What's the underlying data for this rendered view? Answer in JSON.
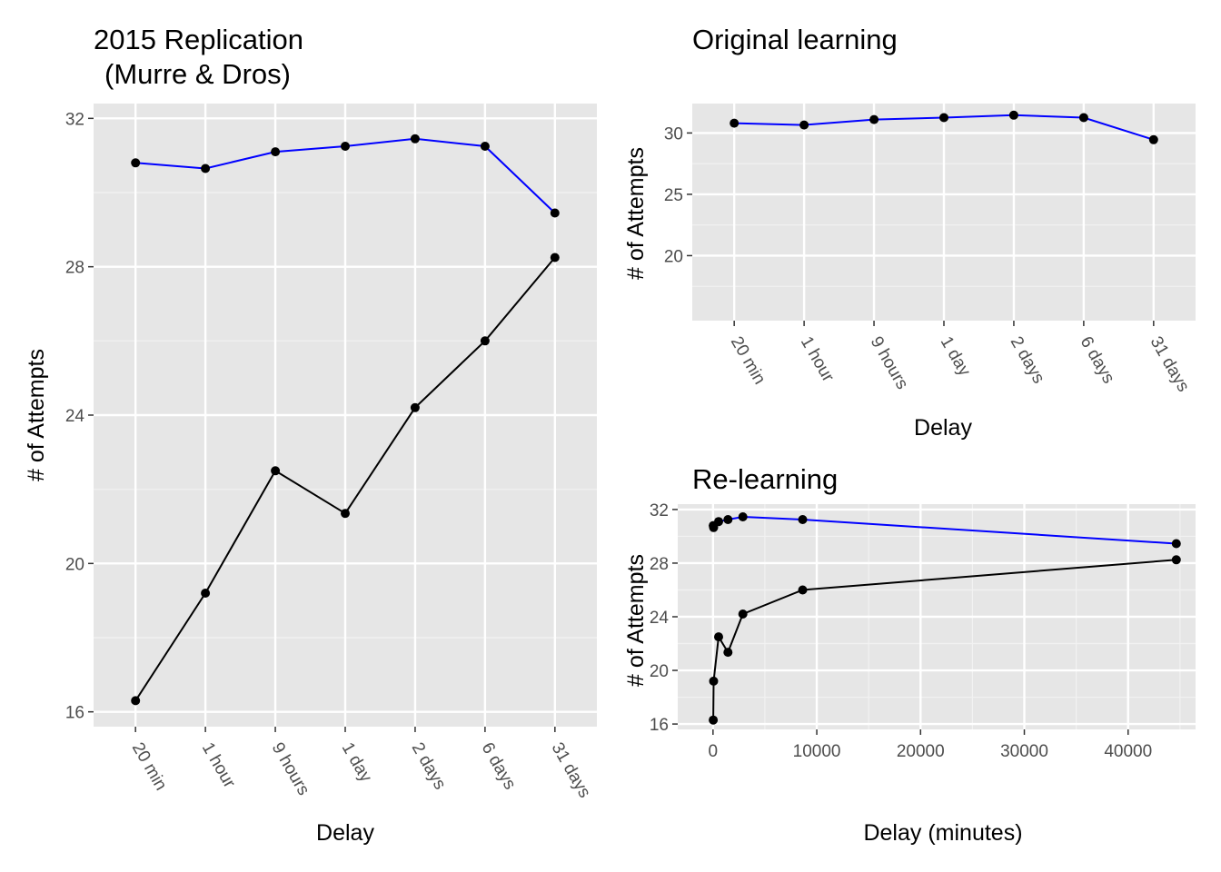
{
  "chart_data": [
    {
      "id": "left",
      "type": "line",
      "title": "2015 Replication",
      "subtitle": "(Murre & Dros)",
      "xlabel": "Delay",
      "ylabel": "# of Attempts",
      "categories": [
        "20 min",
        "1 hour",
        "9 hours",
        "1 day",
        "2 days",
        "6 days",
        "31 days"
      ],
      "ylim": [
        15.6,
        32.4
      ],
      "yticks": [
        16,
        20,
        24,
        28,
        32
      ],
      "grid": true,
      "series": [
        {
          "color": "#0000ff",
          "values": [
            30.8,
            30.65,
            31.1,
            31.25,
            31.45,
            31.25,
            29.45
          ]
        },
        {
          "color": "#000000",
          "values": [
            16.3,
            19.2,
            22.5,
            21.35,
            24.2,
            26.0,
            28.25
          ]
        }
      ]
    },
    {
      "id": "topright",
      "type": "line",
      "title": "Original learning",
      "xlabel": "Delay",
      "ylabel": "# of Attempts",
      "categories": [
        "20 min",
        "1 hour",
        "9 hours",
        "1 day",
        "2 days",
        "6 days",
        "31 days"
      ],
      "ylim": [
        14.7,
        32.4
      ],
      "yticks": [
        20,
        25,
        30
      ],
      "grid": true,
      "series": [
        {
          "color": "#0000ff",
          "values": [
            30.8,
            30.65,
            31.1,
            31.25,
            31.45,
            31.25,
            29.45
          ]
        }
      ]
    },
    {
      "id": "bottomright",
      "type": "line",
      "title": "Re-learning",
      "xlabel": "Delay (minutes)",
      "ylabel": "# of Attempts",
      "xlim": [
        -3400,
        46500
      ],
      "xticks": [
        0,
        10000,
        20000,
        30000,
        40000
      ],
      "ylim": [
        15.6,
        32.4
      ],
      "yticks": [
        16,
        20,
        24,
        28,
        32
      ],
      "grid": true,
      "series": [
        {
          "color": "#0000ff",
          "x": [
            20,
            60,
            540,
            1440,
            2880,
            8640,
            44640
          ],
          "values": [
            30.8,
            30.65,
            31.1,
            31.25,
            31.45,
            31.25,
            29.45
          ]
        },
        {
          "color": "#000000",
          "x": [
            20,
            60,
            540,
            1440,
            2880,
            8640,
            44640
          ],
          "values": [
            16.3,
            19.2,
            22.5,
            21.35,
            24.2,
            26.0,
            28.25
          ]
        }
      ]
    }
  ]
}
